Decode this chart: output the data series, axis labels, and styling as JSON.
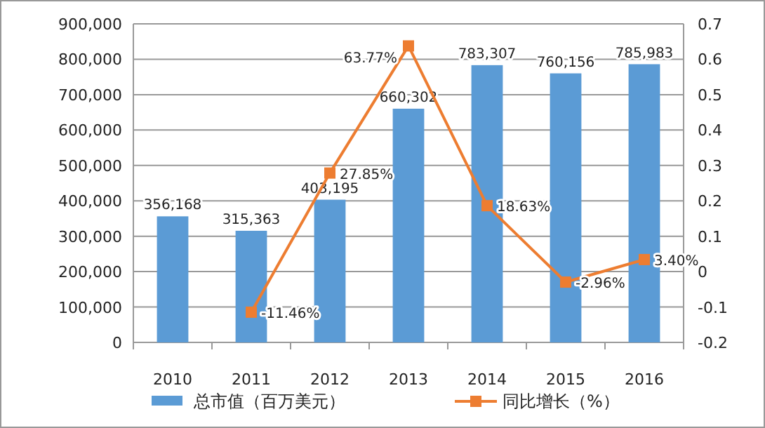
{
  "chart_data": {
    "type": "bar",
    "categories": [
      "2010",
      "2011",
      "2012",
      "2013",
      "2014",
      "2015",
      "2016"
    ],
    "series": [
      {
        "name": "总市值（百万美元）",
        "color": "#5b9bd5",
        "values": [
          356168,
          315363,
          403195,
          660302,
          783307,
          760156,
          785983
        ],
        "value_labels": [
          "356,168",
          "315,363",
          "403,195",
          "660,302",
          "783,307",
          "760,156",
          "785,983"
        ]
      },
      {
        "name": "同比增长（%）",
        "type": "line",
        "axis": "y2",
        "color": "#ed7d31",
        "marker": "square",
        "values": [
          null,
          -0.1146,
          0.2785,
          0.6377,
          0.1863,
          -0.0296,
          0.034
        ],
        "value_labels": [
          null,
          "-11.46%",
          "27.85%",
          "63.77%",
          "18.63%",
          "-2.96%",
          "3.40%"
        ]
      }
    ],
    "ylim": [
      0,
      900000
    ],
    "yticks": [
      {
        "value": 0,
        "label": "0"
      },
      {
        "value": 100000,
        "label": "100,000"
      },
      {
        "value": 200000,
        "label": "200,000"
      },
      {
        "value": 300000,
        "label": "300,000"
      },
      {
        "value": 400000,
        "label": "400,000"
      },
      {
        "value": 500000,
        "label": "500,000"
      },
      {
        "value": 600000,
        "label": "600,000"
      },
      {
        "value": 700000,
        "label": "700,000"
      },
      {
        "value": 800000,
        "label": "800,000"
      },
      {
        "value": 900000,
        "label": "900,000"
      }
    ],
    "y2lim": [
      -0.2,
      0.7
    ],
    "y2ticks": [
      -0.2,
      -0.1,
      0,
      0.1,
      0.2,
      0.3,
      0.4,
      0.5,
      0.6,
      0.7
    ],
    "grid": "y",
    "legend": "bottom"
  }
}
